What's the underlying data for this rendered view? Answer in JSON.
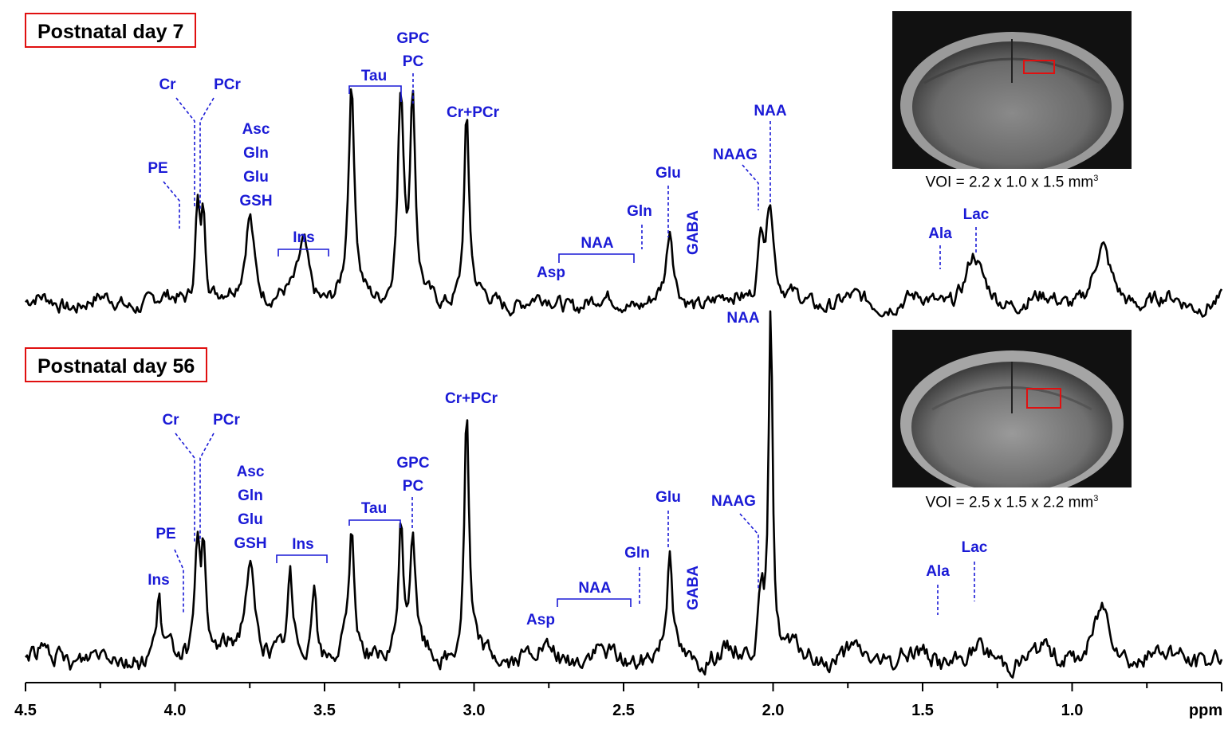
{
  "chart_data": {
    "type": "line",
    "x_axis": {
      "label": "ppm",
      "range": [
        4.5,
        0.5
      ],
      "reversed": true,
      "ticks": [
        4.5,
        4.0,
        3.5,
        3.0,
        2.5,
        2.0,
        1.5,
        1.0
      ],
      "tick_labels": [
        "4.5",
        "4.0",
        "3.5",
        "3.0",
        "2.5",
        "2.0",
        "1.5",
        "1.0"
      ]
    },
    "panels": [
      {
        "title": "Postnatal day 7",
        "voi_text": "VOI = 2.2 x 1.0 x 1.5 mm",
        "voi_sup": "3",
        "peaks": [
          {
            "ppm": 3.41,
            "height": 0.73,
            "width": 0.012
          },
          {
            "ppm": 3.245,
            "height": 0.71,
            "width": 0.012
          },
          {
            "ppm": 3.205,
            "height": 0.68,
            "width": 0.01
          },
          {
            "ppm": 3.025,
            "height": 0.64,
            "width": 0.01
          },
          {
            "ppm": 2.01,
            "height": 0.35,
            "width": 0.014
          },
          {
            "ppm": 3.925,
            "height": 0.33,
            "width": 0.009
          },
          {
            "ppm": 3.905,
            "height": 0.3,
            "width": 0.009
          },
          {
            "ppm": 3.75,
            "height": 0.31,
            "width": 0.018
          },
          {
            "ppm": 2.345,
            "height": 0.24,
            "width": 0.013
          },
          {
            "ppm": 2.04,
            "height": 0.24,
            "width": 0.012
          },
          {
            "ppm": 3.57,
            "height": 0.2,
            "width": 0.02
          },
          {
            "ppm": 0.9,
            "height": 0.18,
            "width": 0.03
          },
          {
            "ppm": 1.33,
            "height": 0.15,
            "width": 0.03
          }
        ],
        "labels": [
          {
            "text": "Cr",
            "ppm": 3.93
          },
          {
            "text": "PCr",
            "ppm": 3.91
          },
          {
            "text": "PE",
            "ppm": 3.98
          },
          {
            "text": "Asc",
            "ppm": 3.75
          },
          {
            "text": "Gln",
            "ppm": 3.75
          },
          {
            "text": "Glu",
            "ppm": 3.75
          },
          {
            "text": "GSH",
            "ppm": 3.75
          },
          {
            "text": "Ins",
            "ppm": 3.57
          },
          {
            "text": "Tau",
            "ppm": 3.42
          },
          {
            "text": "GPC",
            "ppm": 3.21
          },
          {
            "text": "PC",
            "ppm": 3.21
          },
          {
            "text": "Cr+PCr",
            "ppm": 3.03
          },
          {
            "text": "Asp",
            "ppm": 2.8
          },
          {
            "text": "NAA",
            "ppm": 2.6
          },
          {
            "text": "Gln",
            "ppm": 2.45
          },
          {
            "text": "Glu",
            "ppm": 2.35
          },
          {
            "text": "GABA",
            "ppm": 2.28
          },
          {
            "text": "NAAG",
            "ppm": 2.05
          },
          {
            "text": "NAA",
            "ppm": 2.01
          },
          {
            "text": "Ala",
            "ppm": 1.47
          },
          {
            "text": "Lac",
            "ppm": 1.33
          }
        ]
      },
      {
        "title": "Postnatal day 56",
        "voi_text": "VOI = 2.5 x 1.5 x 2.2 mm",
        "voi_sup": "3",
        "peaks": [
          {
            "ppm": 2.008,
            "height": 1.0,
            "width": 0.008
          },
          {
            "ppm": 3.025,
            "height": 0.7,
            "width": 0.009
          },
          {
            "ppm": 3.245,
            "height": 0.36,
            "width": 0.01
          },
          {
            "ppm": 3.205,
            "height": 0.34,
            "width": 0.01
          },
          {
            "ppm": 3.41,
            "height": 0.34,
            "width": 0.01
          },
          {
            "ppm": 3.925,
            "height": 0.33,
            "width": 0.009
          },
          {
            "ppm": 3.905,
            "height": 0.3,
            "width": 0.009
          },
          {
            "ppm": 2.345,
            "height": 0.31,
            "width": 0.01
          },
          {
            "ppm": 3.75,
            "height": 0.27,
            "width": 0.02
          },
          {
            "ppm": 4.055,
            "height": 0.17,
            "width": 0.008
          },
          {
            "ppm": 3.615,
            "height": 0.22,
            "width": 0.008
          },
          {
            "ppm": 3.535,
            "height": 0.23,
            "width": 0.009
          },
          {
            "ppm": 2.04,
            "height": 0.18,
            "width": 0.012
          },
          {
            "ppm": 0.9,
            "height": 0.13,
            "width": 0.03
          }
        ],
        "labels": [
          {
            "text": "Cr",
            "ppm": 3.93
          },
          {
            "text": "PCr",
            "ppm": 3.91
          },
          {
            "text": "Ins",
            "ppm": 4.06
          },
          {
            "text": "PE",
            "ppm": 3.97
          },
          {
            "text": "Asc",
            "ppm": 3.75
          },
          {
            "text": "Gln",
            "ppm": 3.75
          },
          {
            "text": "Glu",
            "ppm": 3.75
          },
          {
            "text": "GSH",
            "ppm": 3.75
          },
          {
            "text": "Ins",
            "ppm": 3.58
          },
          {
            "text": "Tau",
            "ppm": 3.42
          },
          {
            "text": "GPC",
            "ppm": 3.21
          },
          {
            "text": "PC",
            "ppm": 3.21
          },
          {
            "text": "Cr+PCr",
            "ppm": 3.03
          },
          {
            "text": "Asp",
            "ppm": 2.8
          },
          {
            "text": "NAA",
            "ppm": 2.6
          },
          {
            "text": "Gln",
            "ppm": 2.45
          },
          {
            "text": "Glu",
            "ppm": 2.35
          },
          {
            "text": "GABA",
            "ppm": 2.28
          },
          {
            "text": "NAAG",
            "ppm": 2.05
          },
          {
            "text": "NAA",
            "ppm": 2.01
          },
          {
            "text": "Ala",
            "ppm": 1.47
          },
          {
            "text": "Lac",
            "ppm": 1.33
          }
        ]
      }
    ]
  },
  "colors": {
    "label": "#1a1ad6",
    "box": "#e01010",
    "trace": "#000000"
  }
}
